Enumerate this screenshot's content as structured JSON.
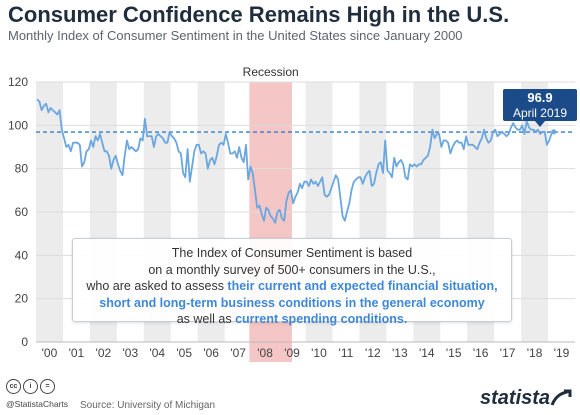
{
  "header": {
    "title": "Consumer Confidence Remains High in the U.S.",
    "subtitle": "Monthly Index of Consumer Sentiment in the United States since January 2000"
  },
  "annotation": {
    "line1": "The Index of Consumer Sentiment is based",
    "line2": "on a monthly survey of 500+ consumers in the U.S.,",
    "line3_plain": "who are asked to assess ",
    "line3_hl": "their current and expected financial situation,",
    "line4_hl": "short and long-term business conditions in the general economy",
    "line5_plain": "as well as ",
    "line5_hl": "current spending conditions."
  },
  "callout": {
    "value": "96.9",
    "date": "April 2019"
  },
  "footer": {
    "handle": "@StatistaCharts",
    "source": "Source: University of Michigan",
    "brand": "statista",
    "cc_icons": [
      "cc-icon",
      "attribution-icon",
      "no-derivatives-icon"
    ],
    "cc_glyphs": [
      "cc",
      "i",
      "="
    ]
  },
  "chart_data": {
    "type": "line",
    "title": "Consumer Confidence Remains High in the U.S.",
    "subtitle": "Monthly Index of Consumer Sentiment in the United States since January 2000",
    "x_tick_labels": [
      "'00",
      "'01",
      "'02",
      "'03",
      "'04",
      "'05",
      "'06",
      "'07",
      "'08",
      "'09",
      "'10",
      "'11",
      "'12",
      "'13",
      "'14",
      "'15",
      "'16",
      "'17",
      "'18",
      "'19"
    ],
    "y_ticks": [
      0,
      20,
      40,
      60,
      80,
      100,
      120
    ],
    "ylim": [
      0,
      120
    ],
    "x_start": "2000-01",
    "x_end": "2019-04",
    "recession": {
      "label": "Recession",
      "start": "2007-12",
      "end": "2009-06"
    },
    "reference_line": {
      "value": 96.9,
      "label": "April 2019"
    },
    "shaded_years": [
      "'00",
      "'02",
      "'04",
      "'06",
      "'08",
      "'10",
      "'12",
      "'14",
      "'16",
      "'18"
    ],
    "colors": {
      "line": "#6aa6e0",
      "reference": "#2f7fcb",
      "recession": "#f4c6c6",
      "band": "#ececec",
      "callout": "#1b4b89"
    },
    "grid": true,
    "series": [
      {
        "values": [
          112,
          111,
          107,
          109,
          110,
          106,
          108,
          107,
          106,
          105,
          107,
          98,
          94,
          90,
          91,
          88,
          92,
          92,
          92,
          91,
          81,
          83,
          88,
          89,
          93,
          90,
          95,
          93,
          96,
          92,
          88,
          88,
          86,
          80,
          84,
          86,
          82,
          79,
          77,
          86,
          93,
          89,
          90,
          89,
          88,
          89,
          94,
          93,
          103,
          95,
          95,
          95,
          90,
          95,
          96,
          95,
          94,
          92,
          92,
          97,
          95,
          94,
          92,
          88,
          87,
          78,
          76,
          89,
          74,
          81,
          88,
          91,
          91,
          87,
          88,
          87,
          80,
          84,
          85,
          82,
          86,
          91,
          92,
          91,
          96,
          92,
          87,
          87,
          88,
          85,
          90,
          85,
          83,
          91,
          75,
          81,
          78,
          70,
          62,
          63,
          59,
          56,
          62,
          61,
          58,
          57,
          55,
          60,
          61,
          57,
          56,
          65,
          69,
          70,
          64,
          67,
          69,
          73,
          71,
          74,
          74,
          72,
          75,
          73,
          74,
          72,
          74,
          76,
          68,
          67,
          68,
          71,
          74,
          77,
          75,
          67,
          58,
          56,
          60,
          64,
          70,
          74,
          75,
          76,
          76,
          73,
          76,
          78,
          79,
          72,
          73,
          78,
          82,
          83,
          78,
          93,
          79,
          78,
          76,
          85,
          81,
          83,
          84,
          82,
          76,
          75,
          82,
          81,
          82,
          81,
          82,
          82,
          84,
          85,
          86,
          90,
          98,
          94,
          96,
          96,
          90,
          93,
          93,
          92,
          87,
          90,
          92,
          93,
          92,
          92,
          89,
          95,
          91,
          91,
          91,
          90,
          89,
          92,
          94,
          98,
          94,
          92,
          93,
          97,
          98,
          95,
          96,
          97,
          96,
          95,
          96,
          99,
          101,
          99,
          98,
          98,
          100,
          96,
          102,
          99,
          98,
          98,
          97,
          98,
          96,
          97,
          97,
          91,
          93,
          96,
          97
        ]
      }
    ]
  }
}
